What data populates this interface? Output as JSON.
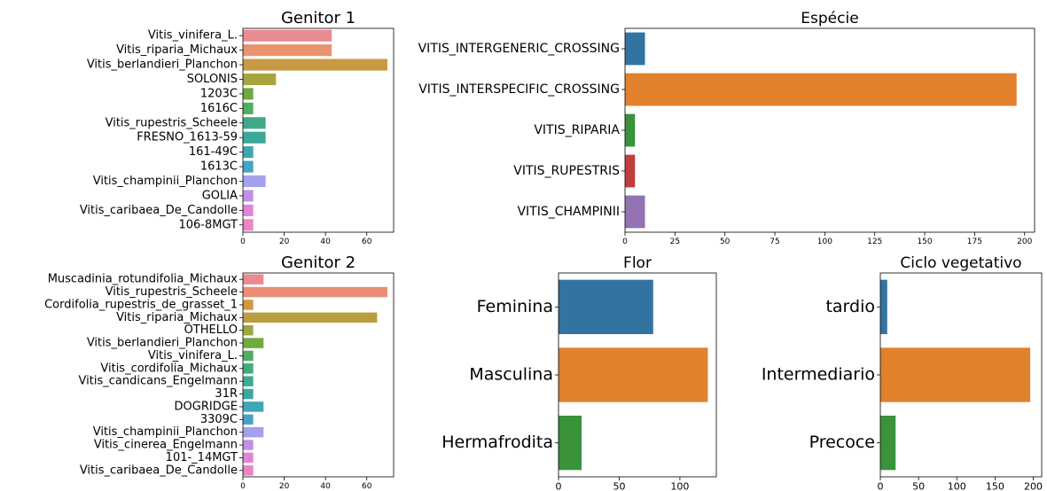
{
  "chart_data": [
    {
      "type": "bar",
      "horizontal": true,
      "title": "Genitor 1",
      "categories": [
        "Vitis_vinifera_L.",
        "Vitis_riparia_Michaux",
        "Vitis_berlandieri_Planchon",
        "SOLONIS",
        "1203C",
        "1616C",
        "Vitis_rupestris_Scheele",
        "FRESNO_1613-59",
        "161-49C",
        "1613C",
        "Vitis_champinii_Planchon",
        "GOLIA",
        "Vitis_caribaea_De_Candolle",
        "106-8MGT"
      ],
      "values": [
        43,
        43,
        70,
        16,
        5,
        5,
        11,
        11,
        5,
        5,
        11,
        5,
        5,
        5
      ],
      "colors": [
        "#ea8a93",
        "#e9926f",
        "#c99a44",
        "#a7a43f",
        "#6ea83e",
        "#4caf63",
        "#3eaa8a",
        "#3ca89a",
        "#3ea6b1",
        "#45a3c8",
        "#a3a1ec",
        "#c18fe8",
        "#e184d8",
        "#e985c4"
      ],
      "xlim": [
        0,
        73
      ],
      "xticks": [
        0,
        20,
        40,
        60
      ]
    },
    {
      "type": "bar",
      "horizontal": true,
      "title": "Espécie",
      "categories": [
        "VITIS_INTERGENERIC_CROSSING",
        "VITIS_INTERSPECIFIC_CROSSING",
        "VITIS_RIPARIA",
        "VITIS_RUPESTRIS",
        "VITIS_CHAMPINII"
      ],
      "values": [
        10,
        196,
        5,
        5,
        10
      ],
      "colors": [
        "#3274a1",
        "#e1812c",
        "#3a923a",
        "#c03d3e",
        "#9372b2"
      ],
      "xlim": [
        0,
        205
      ],
      "xticks": [
        0,
        25,
        50,
        75,
        100,
        125,
        150,
        175,
        200
      ]
    },
    {
      "type": "bar",
      "horizontal": true,
      "title": "Genitor 2",
      "categories": [
        "Muscadinia_rotundifolia_Michaux",
        "Vitis_rupestris_Scheele",
        "Cordifolia_rupestris_de_grasset_1",
        "Vitis_riparia_Michaux",
        "OTHELLO",
        "Vitis_berlandieri_Planchon",
        "Vitis_vinifera_L.",
        "Vitis_cordifolia_Michaux",
        "Vitis_candicans_Engelmann",
        "31R",
        "DOGRIDGE",
        "3309C",
        "Vitis_champinii_Planchon",
        "Vitis_cinerea_Engelmann",
        "101-_14MGT",
        "Vitis_caribaea_De_Candolle"
      ],
      "values": [
        10,
        70,
        5,
        65,
        5,
        10,
        5,
        5,
        5,
        5,
        10,
        5,
        10,
        5,
        5,
        5
      ],
      "colors": [
        "#ea8a93",
        "#ea8e74",
        "#d4963f",
        "#b99e40",
        "#9da83f",
        "#6fab3e",
        "#4caf63",
        "#3fac80",
        "#3daa92",
        "#3ca8a1",
        "#3ea6b6",
        "#48a2cc",
        "#a3a1ec",
        "#c08fe8",
        "#e184d8",
        "#e985c4"
      ],
      "xlim": [
        0,
        73
      ],
      "xticks": [
        0,
        20,
        40,
        60
      ]
    },
    {
      "type": "bar",
      "horizontal": true,
      "title": "Flor",
      "categories": [
        "Feminina",
        "Masculina",
        "Hermafrodita"
      ],
      "values": [
        78,
        123,
        19
      ],
      "colors": [
        "#3274a1",
        "#e1812c",
        "#3a923a"
      ],
      "xlim": [
        0,
        130
      ],
      "xticks": [
        0,
        50,
        100
      ]
    },
    {
      "type": "bar",
      "horizontal": true,
      "title": "Ciclo vegetativo",
      "categories": [
        "tardio",
        "Intermediario",
        "Precoce"
      ],
      "values": [
        9,
        196,
        20
      ],
      "colors": [
        "#3274a1",
        "#e1812c",
        "#3a923a"
      ],
      "xlim": [
        0,
        211
      ],
      "xticks": [
        0,
        50,
        100,
        150,
        200
      ]
    }
  ]
}
